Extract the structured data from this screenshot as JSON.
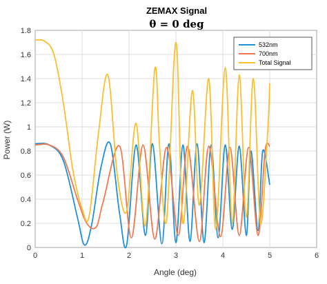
{
  "chart_data": {
    "type": "line",
    "title": "ZEMAX Signal",
    "subtitle": "θ = 0 deg",
    "xlabel": "Angle (deg)",
    "ylabel": "Power (W)",
    "xlim": [
      0,
      6
    ],
    "ylim": [
      0,
      1.8
    ],
    "xticks": [
      "0",
      "1",
      "2",
      "3",
      "4",
      "5",
      "6"
    ],
    "yticks": [
      "0",
      "0.2",
      "0.4",
      "0.6",
      "0.8",
      "1",
      "1.2",
      "1.4",
      "1.6",
      "1.8"
    ],
    "grid": true,
    "legend_position": "top-right",
    "series": [
      {
        "name": "532nm",
        "color": "#1f8fd6",
        "x": [
          0,
          0.3,
          0.6,
          0.9,
          1.05,
          1.2,
          1.4,
          1.6,
          1.8,
          1.95,
          2.15,
          2.35,
          2.5,
          2.7,
          2.85,
          3.0,
          3.15,
          3.3,
          3.45,
          3.6,
          3.75,
          3.9,
          4.05,
          4.2,
          4.35,
          4.5,
          4.6,
          4.75,
          4.85,
          5.0
        ],
        "y": [
          0.86,
          0.85,
          0.72,
          0.25,
          0.02,
          0.18,
          0.66,
          0.86,
          0.28,
          0.02,
          0.85,
          0.1,
          0.86,
          0.03,
          0.86,
          0.04,
          0.85,
          0.05,
          0.86,
          0.04,
          0.85,
          0.08,
          0.85,
          0.15,
          0.84,
          0.1,
          0.8,
          0.14,
          0.8,
          0.52
        ]
      },
      {
        "name": "700nm",
        "color": "#f07850",
        "x": [
          0,
          0.3,
          0.6,
          0.9,
          1.1,
          1.3,
          1.45,
          1.8,
          2.05,
          2.3,
          2.55,
          2.8,
          3.05,
          3.25,
          3.5,
          3.7,
          3.95,
          4.15,
          4.35,
          4.55,
          4.75,
          4.9,
          5.0
        ],
        "y": [
          0.85,
          0.85,
          0.75,
          0.4,
          0.2,
          0.17,
          0.38,
          0.84,
          0.08,
          0.85,
          0.07,
          0.83,
          0.1,
          0.84,
          0.05,
          0.84,
          0.09,
          0.83,
          0.1,
          0.83,
          0.1,
          0.8,
          0.84
        ]
      },
      {
        "name": "Total Signal",
        "color": "#f8c030",
        "x": [
          0,
          0.2,
          0.4,
          0.6,
          0.8,
          1.0,
          1.15,
          1.35,
          1.55,
          1.75,
          1.95,
          2.15,
          2.35,
          2.55,
          2.65,
          2.8,
          3.0,
          3.15,
          3.35,
          3.5,
          3.7,
          3.85,
          4.05,
          4.2,
          4.35,
          4.5,
          4.65,
          4.8,
          4.95,
          5.0
        ],
        "y": [
          1.72,
          1.71,
          1.6,
          1.2,
          0.65,
          0.32,
          0.26,
          0.95,
          1.43,
          0.6,
          0.3,
          1.03,
          0.18,
          1.48,
          0.85,
          0.22,
          1.7,
          0.2,
          1.3,
          0.35,
          1.4,
          0.15,
          1.49,
          0.2,
          1.43,
          0.25,
          1.4,
          0.2,
          0.92,
          1.36
        ]
      }
    ]
  }
}
